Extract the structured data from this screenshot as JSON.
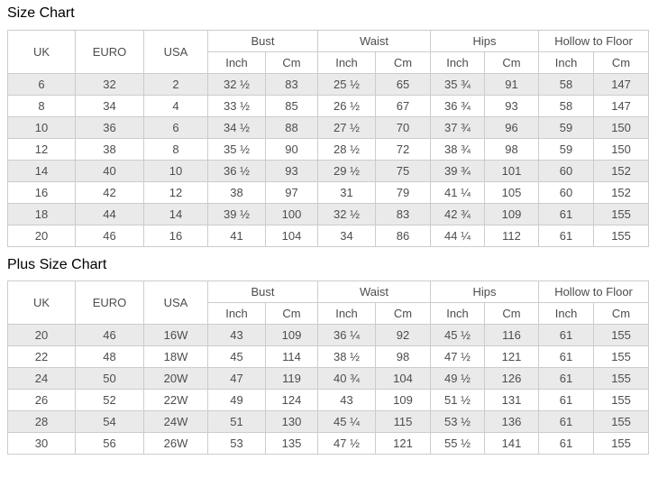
{
  "page": {
    "background": "#ffffff"
  },
  "colors": {
    "title_text": "#000000",
    "table_text": "#4d4d4d",
    "table_border": "#cccccc",
    "stripe_row_background": "#eaeaea",
    "row_background": "#ffffff"
  },
  "chart_data": [
    {
      "type": "table",
      "title": "Size Chart",
      "header": {
        "simple": [
          "UK",
          "EURO",
          "USA"
        ],
        "groups": [
          "Bust",
          "Waist",
          "Hips",
          "Hollow to Floor"
        ],
        "units": [
          "Inch",
          "Cm"
        ]
      },
      "columns": [
        "UK",
        "EURO",
        "USA",
        "Bust Inch",
        "Bust Cm",
        "Waist Inch",
        "Waist Cm",
        "Hips Inch",
        "Hips Cm",
        "Hollow to Floor Inch",
        "Hollow to Floor Cm"
      ],
      "rows": [
        [
          "6",
          "32",
          "2",
          "32 ½",
          "83",
          "25 ½",
          "65",
          "35 ¾",
          "91",
          "58",
          "147"
        ],
        [
          "8",
          "34",
          "4",
          "33 ½",
          "85",
          "26 ½",
          "67",
          "36 ¾",
          "93",
          "58",
          "147"
        ],
        [
          "10",
          "36",
          "6",
          "34 ½",
          "88",
          "27 ½",
          "70",
          "37 ¾",
          "96",
          "59",
          "150"
        ],
        [
          "12",
          "38",
          "8",
          "35 ½",
          "90",
          "28 ½",
          "72",
          "38 ¾",
          "98",
          "59",
          "150"
        ],
        [
          "14",
          "40",
          "10",
          "36 ½",
          "93",
          "29 ½",
          "75",
          "39 ¾",
          "101",
          "60",
          "152"
        ],
        [
          "16",
          "42",
          "12",
          "38",
          "97",
          "31",
          "79",
          "41 ¼",
          "105",
          "60",
          "152"
        ],
        [
          "18",
          "44",
          "14",
          "39 ½",
          "100",
          "32 ½",
          "83",
          "42 ¾",
          "109",
          "61",
          "155"
        ],
        [
          "20",
          "46",
          "16",
          "41",
          "104",
          "34",
          "86",
          "44 ¼",
          "112",
          "61",
          "155"
        ]
      ]
    },
    {
      "type": "table",
      "title": "Plus Size Chart",
      "header": {
        "simple": [
          "UK",
          "EURO",
          "USA"
        ],
        "groups": [
          "Bust",
          "Waist",
          "Hips",
          "Hollow to Floor"
        ],
        "units": [
          "Inch",
          "Cm"
        ]
      },
      "columns": [
        "UK",
        "EURO",
        "USA",
        "Bust Inch",
        "Bust Cm",
        "Waist Inch",
        "Waist Cm",
        "Hips Inch",
        "Hips Cm",
        "Hollow to Floor Inch",
        "Hollow to Floor Cm"
      ],
      "rows": [
        [
          "20",
          "46",
          "16W",
          "43",
          "109",
          "36 ¼",
          "92",
          "45 ½",
          "116",
          "61",
          "155"
        ],
        [
          "22",
          "48",
          "18W",
          "45",
          "114",
          "38 ½",
          "98",
          "47 ½",
          "121",
          "61",
          "155"
        ],
        [
          "24",
          "50",
          "20W",
          "47",
          "119",
          "40 ¾",
          "104",
          "49 ½",
          "126",
          "61",
          "155"
        ],
        [
          "26",
          "52",
          "22W",
          "49",
          "124",
          "43",
          "109",
          "51 ½",
          "131",
          "61",
          "155"
        ],
        [
          "28",
          "54",
          "24W",
          "51",
          "130",
          "45 ¼",
          "115",
          "53 ½",
          "136",
          "61",
          "155"
        ],
        [
          "30",
          "56",
          "26W",
          "53",
          "135",
          "47 ½",
          "121",
          "55 ½",
          "141",
          "61",
          "155"
        ]
      ]
    }
  ]
}
